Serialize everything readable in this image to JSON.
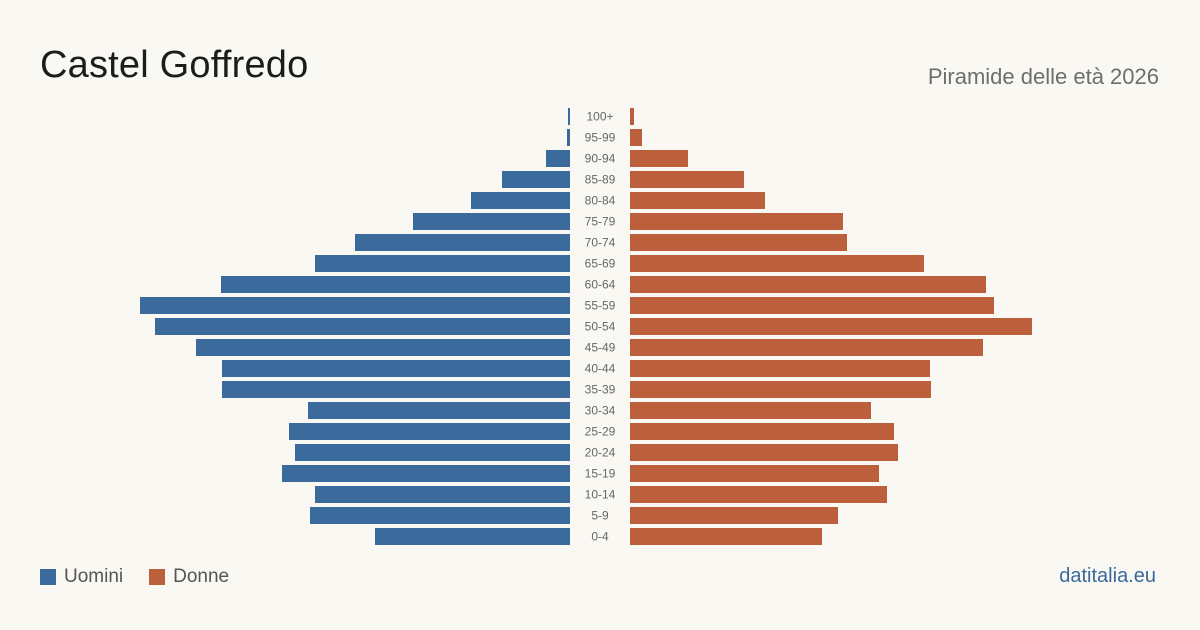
{
  "header": {
    "title": "Castel Goffredo",
    "subtitle": "Piramide delle età 2026"
  },
  "legend": {
    "men_label": "Uomini",
    "women_label": "Donne"
  },
  "source": "datitalia.eu",
  "colors": {
    "men": "#3b6a9c",
    "women": "#bb5f3d",
    "background": "#faf8f3"
  },
  "chart_data": {
    "type": "bar",
    "orientation": "horizontal-pyramid",
    "categories": [
      "100+",
      "95-99",
      "90-94",
      "85-89",
      "80-84",
      "75-79",
      "70-74",
      "65-69",
      "60-64",
      "55-59",
      "50-54",
      "45-49",
      "40-44",
      "35-39",
      "30-34",
      "25-29",
      "20-24",
      "15-19",
      "10-14",
      "5-9",
      "0-4"
    ],
    "series": [
      {
        "name": "Uomini",
        "values": [
          2,
          3,
          24,
          68,
          99,
          157,
          215,
          255,
          349,
          430,
          415,
          374,
          348,
          348,
          262,
          281,
          275,
          288,
          255,
          260,
          195
        ]
      },
      {
        "name": "Donne",
        "values": [
          4,
          12,
          58,
          114,
          135,
          213,
          217,
          294,
          356,
          364,
          402,
          353,
          300,
          301,
          241,
          264,
          268,
          249,
          257,
          208,
          192
        ]
      }
    ],
    "title": "Castel Goffredo",
    "subtitle": "Piramide delle età 2026",
    "xlabel": "",
    "ylabel": "",
    "legend_position": "bottom-left",
    "grid": false
  }
}
